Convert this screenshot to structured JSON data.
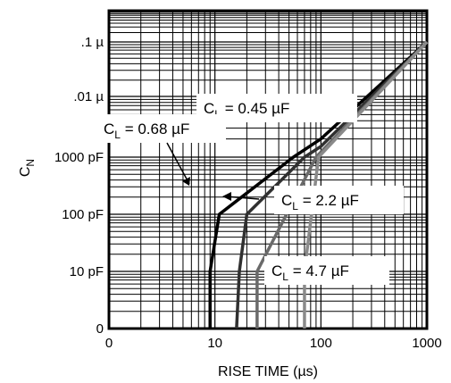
{
  "chart_data": {
    "type": "line",
    "xlabel": "RISE TIME (µs)",
    "ylabel": "C",
    "ylabel_subscript": "N",
    "x_scale": "log",
    "y_scale": "log",
    "grid": true,
    "xlim": [
      1,
      1000
    ],
    "ylim": [
      "0",
      ".1 µ"
    ],
    "x_ticks": [
      "0",
      "10",
      "100",
      "1000"
    ],
    "y_ticks": [
      "0",
      "10 pF",
      "100 pF",
      "1000 pF",
      ".01 µ",
      ".1 µ"
    ],
    "series": [
      {
        "name": "C = 0.45 µF",
        "name_parts": {
          "prefix": "C",
          "sub": "L",
          "suffix": " = 0.45 µF"
        },
        "color": "#000000",
        "points": [
          [
            9,
            "0"
          ],
          [
            9,
            "10 pF"
          ],
          [
            11,
            "100 pF"
          ],
          [
            55,
            "1000 pF"
          ],
          [
            100,
            "2000 pF"
          ],
          [
            1000,
            ".1 µ"
          ]
        ]
      },
      {
        "name": "C = 0.68 µF",
        "name_parts": {
          "prefix": "C",
          "sub": "L",
          "suffix": " = 0.68 µF"
        },
        "color": "#303030",
        "points": [
          [
            16,
            "0"
          ],
          [
            17,
            "10 pF"
          ],
          [
            20,
            "100 pF"
          ],
          [
            70,
            "1000 pF"
          ],
          [
            100,
            "1500 pF"
          ],
          [
            1000,
            ".1 µ"
          ]
        ]
      },
      {
        "name": "C = 2.2 µF",
        "name_parts": {
          "prefix": "C",
          "sub": "L",
          "suffix": " = 2.2 µF"
        },
        "color": "#6a6a6a",
        "points": [
          [
            25,
            "0"
          ],
          [
            25,
            "10 pF"
          ],
          [
            90,
            "1000 pF"
          ],
          [
            1000,
            ".1 µ"
          ]
        ]
      },
      {
        "name": "C = 4.7 µF",
        "name_parts": {
          "prefix": "C",
          "sub": "L",
          "suffix": " = 4.7 µF"
        },
        "color": "#8a8a8a",
        "points": [
          [
            70,
            "0"
          ],
          [
            70,
            "10 pF"
          ],
          [
            95,
            "1000 pF"
          ],
          [
            1000,
            ".1 µ"
          ]
        ]
      }
    ]
  }
}
